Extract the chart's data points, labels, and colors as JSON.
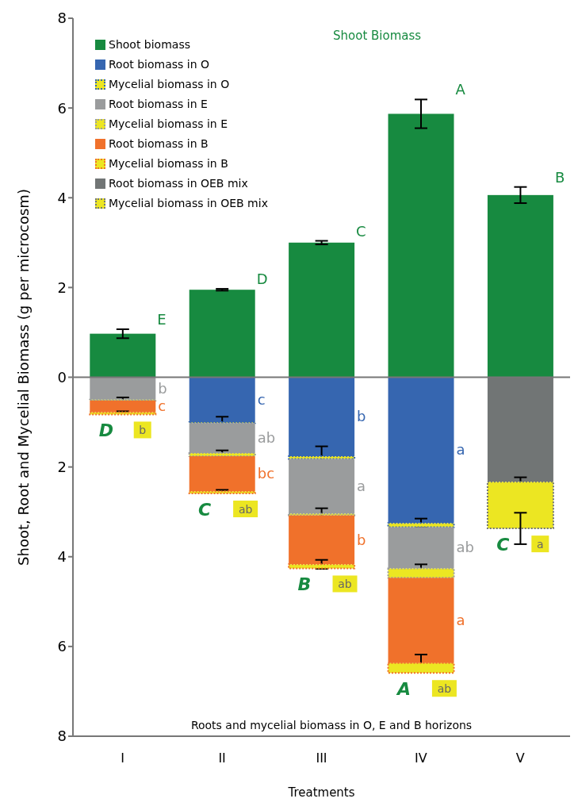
{
  "chart_data": {
    "type": "bar",
    "stacked": true,
    "title": "Shoot Biomass",
    "ylabel": "Shoot, Root and Mycelial Biomass (g per microcosm)",
    "xlabel": "Treatments",
    "categories": [
      "I",
      "II",
      "III",
      "IV",
      "V"
    ],
    "series": [
      {
        "name": "Shoot biomass",
        "color": "#178a40",
        "values": [
          0.97,
          1.95,
          3.0,
          5.87,
          4.06
        ],
        "errors": [
          0.1,
          0.02,
          0.04,
          0.32,
          0.18
        ],
        "value_labels": [
          "E",
          "D",
          "C",
          "A",
          "B"
        ]
      },
      {
        "name": "Root biomass in O",
        "color": "#3666b0",
        "values": [
          null,
          -1.0,
          -1.76,
          -3.25,
          null
        ],
        "errors": [
          null,
          0.12,
          0.22,
          0.1,
          null
        ],
        "value_labels": [
          null,
          "c",
          "b",
          "a",
          null
        ]
      },
      {
        "name": "Mycelial biomass in O",
        "color": "#ece622",
        "line_style": "dotted",
        "values": [
          null,
          -0.02,
          -0.06,
          -0.09,
          null
        ]
      },
      {
        "name": "Root biomass in E",
        "color": "#9a9c9d",
        "values": [
          -0.5,
          -0.67,
          -1.22,
          -0.92,
          null
        ],
        "errors": [
          0.05,
          0.06,
          0.12,
          0.09,
          null
        ],
        "value_labels": [
          "b",
          "ab",
          "a",
          "ab",
          null
        ]
      },
      {
        "name": "Mycelial biomass in E",
        "color": "#ece622",
        "line_style": "dotted",
        "values": [
          -0.02,
          -0.07,
          -0.04,
          -0.21,
          null
        ]
      },
      {
        "name": "Root biomass in B",
        "color": "#f0712b",
        "values": [
          -0.26,
          -0.78,
          -1.09,
          -1.9,
          null
        ],
        "errors": [
          0.02,
          0.03,
          0.1,
          0.19,
          null
        ],
        "value_labels": [
          "c",
          "bc",
          "b",
          "a",
          null
        ]
      },
      {
        "name": "Mycelial biomass in B",
        "color": "#ece622",
        "line_style": "dotted",
        "values": [
          -0.05,
          -0.05,
          -0.09,
          -0.22,
          null
        ],
        "value_labels": [
          "b",
          "ab",
          "ab",
          "ab",
          null
        ]
      },
      {
        "name": "Root biomass in OEB mix",
        "color": "#717575",
        "values": [
          null,
          null,
          null,
          null,
          -2.33
        ],
        "errors": [
          null,
          null,
          null,
          null,
          0.1
        ]
      },
      {
        "name": "Mycelial biomass in OEB mix",
        "color": "#ece622",
        "line_style": "dotted",
        "values": [
          null,
          null,
          null,
          null,
          -1.04
        ],
        "errors": [
          null,
          null,
          null,
          null,
          0.35
        ],
        "value_labels": [
          null,
          null,
          null,
          null,
          "a"
        ]
      }
    ],
    "ylim": [
      -8,
      8
    ],
    "yticks": [
      {
        "value": -8,
        "label": "8"
      },
      {
        "value": -6,
        "label": "6"
      },
      {
        "value": -4,
        "label": "4"
      },
      {
        "value": -2,
        "label": "2"
      },
      0,
      2,
      4,
      6,
      8
    ],
    "legend": "top left",
    "annotations": [
      {
        "text": "D",
        "x": "I",
        "y": -0.83
      },
      {
        "text": "C",
        "x": "II",
        "y": -2.59
      },
      {
        "text": "B",
        "x": "III",
        "y": -4.26
      },
      {
        "text": "A",
        "x": "IV",
        "y": -6.59
      },
      {
        "text": "C",
        "x": "V",
        "y": -3.37
      },
      "Roots and mycelial biomass in O, E and B horizons"
    ]
  }
}
